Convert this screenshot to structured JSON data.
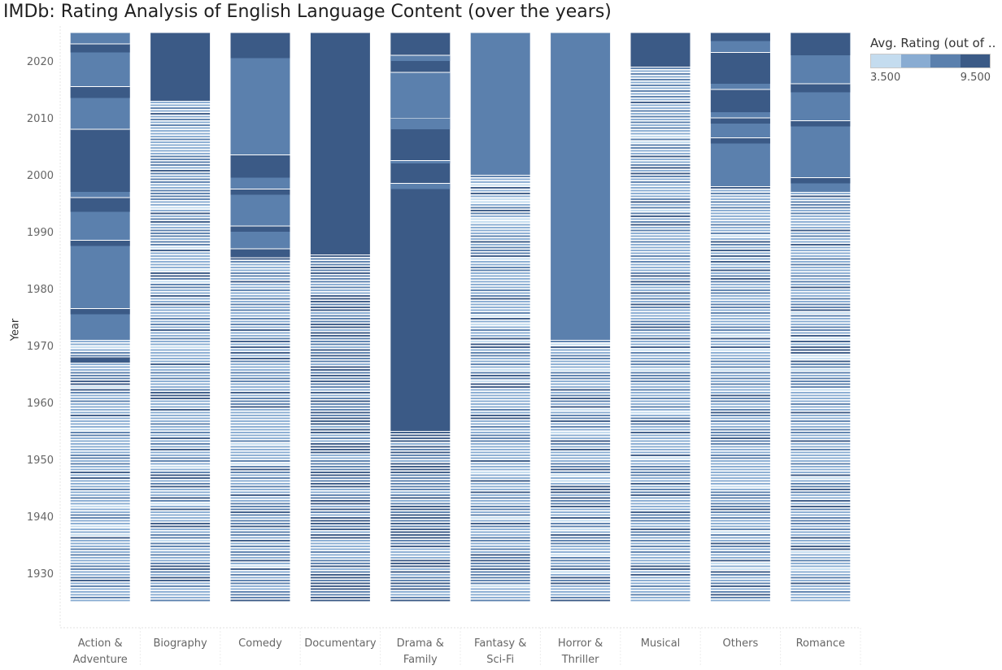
{
  "title": "IMDb: Rating Analysis of English Language Content (over the years)",
  "legend": {
    "title": "Avg. Rating (out of ..",
    "min_label": "3.500",
    "max_label": "9.500",
    "colors": [
      "#c4dcef",
      "#89acd2",
      "#5b80ad",
      "#3b5a86"
    ]
  },
  "chart_data": {
    "type": "heatmap",
    "title": "IMDb: Rating Analysis of English Language Content (over the years)",
    "ylabel": "Year",
    "xlabel": "",
    "ylim": [
      1925,
      2025
    ],
    "yticks": [
      "1930",
      "1940",
      "1950",
      "1960",
      "1970",
      "1980",
      "1990",
      "2000",
      "2010",
      "2020"
    ],
    "color_scale": {
      "min": 3.5,
      "max": 9.5,
      "steps": 4
    },
    "categories": [
      {
        "label": [
          "Action &",
          "Adventure"
        ],
        "segments": [
          {
            "from": 1925,
            "to": 1971,
            "level": "striped"
          },
          {
            "from": 1971,
            "to": 2025,
            "level": 2
          },
          {
            "from": 1967,
            "to": 1968,
            "level": 3
          },
          {
            "from": 1975.5,
            "to": 1976.5,
            "level": 3
          },
          {
            "from": 1987.5,
            "to": 1988.5,
            "level": 3
          },
          {
            "from": 1993.5,
            "to": 1996,
            "level": 3
          },
          {
            "from": 1997,
            "to": 2008,
            "level": 3
          },
          {
            "from": 2013.5,
            "to": 2015.5,
            "level": 3
          },
          {
            "from": 2021.5,
            "to": 2023,
            "level": 3
          }
        ]
      },
      {
        "label": [
          "Biography"
        ],
        "segments": [
          {
            "from": 1925,
            "to": 2013,
            "level": "striped"
          },
          {
            "from": 2013,
            "to": 2025,
            "level": 3
          }
        ]
      },
      {
        "label": [
          "Comedy"
        ],
        "segments": [
          {
            "from": 1925,
            "to": 1987,
            "level": "striped"
          },
          {
            "from": 1987,
            "to": 2025,
            "level": 2
          },
          {
            "from": 1985.5,
            "to": 1987,
            "level": 3
          },
          {
            "from": 1990,
            "to": 1991,
            "level": 3
          },
          {
            "from": 1996.5,
            "to": 1997.5,
            "level": 3
          },
          {
            "from": 1999.5,
            "to": 2003.5,
            "level": 3
          },
          {
            "from": 2020.5,
            "to": 2025,
            "level": 3
          }
        ]
      },
      {
        "label": [
          "Documentary"
        ],
        "segments": [
          {
            "from": 1925,
            "to": 1986,
            "level": "striped-dark"
          },
          {
            "from": 1986,
            "to": 2025,
            "level": 3
          }
        ]
      },
      {
        "label": [
          "Drama &",
          "Family"
        ],
        "segments": [
          {
            "from": 1925,
            "to": 1955,
            "level": "striped-dark"
          },
          {
            "from": 1955,
            "to": 2025,
            "level": 3
          },
          {
            "from": 1997.5,
            "to": 1998.5,
            "level": 2
          },
          {
            "from": 2002,
            "to": 2002.5,
            "level": 2
          },
          {
            "from": 2008,
            "to": 2010,
            "level": 2
          },
          {
            "from": 2010,
            "to": 2018,
            "level": 2
          },
          {
            "from": 2020,
            "to": 2021,
            "level": 2
          }
        ]
      },
      {
        "label": [
          "Fantasy &",
          "Sci-Fi"
        ],
        "segments": [
          {
            "from": 1925,
            "to": 2000,
            "level": "striped"
          },
          {
            "from": 2000,
            "to": 2025,
            "level": 2
          }
        ]
      },
      {
        "label": [
          "Horror &",
          "Thriller"
        ],
        "segments": [
          {
            "from": 1925,
            "to": 1971,
            "level": "striped"
          },
          {
            "from": 1971,
            "to": 2025,
            "level": 2
          }
        ]
      },
      {
        "label": [
          "Musical"
        ],
        "segments": [
          {
            "from": 1925,
            "to": 2019,
            "level": "striped"
          },
          {
            "from": 2019,
            "to": 2025,
            "level": 3
          }
        ]
      },
      {
        "label": [
          "Others"
        ],
        "segments": [
          {
            "from": 1925,
            "to": 1998,
            "level": "striped"
          },
          {
            "from": 1998,
            "to": 2025,
            "level": 2
          },
          {
            "from": 2005.5,
            "to": 2006.5,
            "level": 3
          },
          {
            "from": 2009,
            "to": 2010,
            "level": 3
          },
          {
            "from": 2011,
            "to": 2015,
            "level": 3
          },
          {
            "from": 2016,
            "to": 2021.5,
            "level": 3
          },
          {
            "from": 2023.5,
            "to": 2025,
            "level": 3
          }
        ]
      },
      {
        "label": [
          "Romance"
        ],
        "segments": [
          {
            "from": 1925,
            "to": 1997,
            "level": "striped"
          },
          {
            "from": 1997,
            "to": 2025,
            "level": 2
          },
          {
            "from": 1998.5,
            "to": 1999.5,
            "level": 3
          },
          {
            "from": 2008.5,
            "to": 2009.5,
            "level": 3
          },
          {
            "from": 2014.5,
            "to": 2016,
            "level": 3
          },
          {
            "from": 2021,
            "to": 2025,
            "level": 3
          }
        ]
      }
    ]
  }
}
